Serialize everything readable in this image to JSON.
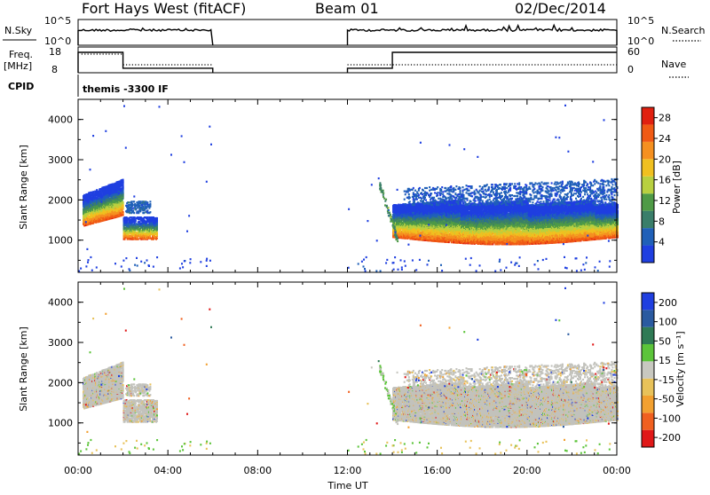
{
  "header": {
    "station": "Fort Hays West (fitACF)",
    "beam": "Beam 01",
    "date": "02/Dec/2014"
  },
  "panels": {
    "nsky_label": "N.Sky",
    "nsky_ticks": [
      "10^5",
      "10^0"
    ],
    "nsearch_label": "N.Search",
    "nsearch_ticks": [
      "10^5",
      "10^0"
    ],
    "freq_label": "Freq.",
    "freq_unit": "[MHz]",
    "freq_ticks": [
      "18",
      "8"
    ],
    "nave_label": "Nave",
    "nave_ticks": [
      "60",
      "0"
    ],
    "cpid_label": "CPID",
    "cpid_text": "themis -3300 IF"
  },
  "colors": {
    "power_scale": [
      "#1f3fe0",
      "#2060b8",
      "#3a7e6a",
      "#4e9a46",
      "#b8d040",
      "#f0c020",
      "#f59020",
      "#f05a14",
      "#e02010"
    ],
    "velocity_scale": [
      "#1f3fe0",
      "#2a5aa0",
      "#2f7a55",
      "#5cc43a",
      "#c8c8c0",
      "#e8c25a",
      "#f2a030",
      "#f06020",
      "#e01818"
    ],
    "gray_scatter": "#c2c2bc"
  },
  "chart_data": [
    {
      "type": "heatmap",
      "ylabel": "Slant Range [km]",
      "xlabel": "Time UT",
      "x_ticks": [
        "00:00",
        "04:00",
        "08:00",
        "12:00",
        "16:00",
        "20:00",
        "00:00"
      ],
      "x_range_hours": [
        0,
        24
      ],
      "y_ticks": [
        "1000",
        "2000",
        "3000",
        "4000"
      ],
      "ylim": [
        200,
        4500
      ],
      "colorbar": {
        "label": "Power [dB]",
        "ticks": [
          "4",
          "8",
          "12",
          "16",
          "20",
          "24",
          "28"
        ],
        "range": [
          0,
          30
        ]
      }
    },
    {
      "type": "heatmap",
      "ylabel": "Slant Range [km]",
      "xlabel": "Time UT",
      "x_ticks": [
        "00:00",
        "04:00",
        "08:00",
        "12:00",
        "16:00",
        "20:00",
        "00:00"
      ],
      "x_range_hours": [
        0,
        24
      ],
      "y_ticks": [
        "1000",
        "2000",
        "3000",
        "4000"
      ],
      "ylim": [
        200,
        4500
      ],
      "colorbar": {
        "label": "Velocity [m s⁻¹]",
        "ticks": [
          "200",
          "100",
          "50",
          "15",
          "-15",
          "-50",
          "-100",
          "-200"
        ],
        "range": [
          -250,
          250
        ]
      }
    }
  ]
}
